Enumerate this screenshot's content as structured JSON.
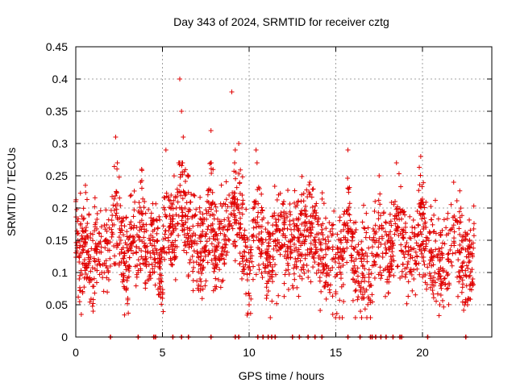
{
  "chart_data": {
    "type": "scatter",
    "title": "Day 343 of 2024, SRMTID for receiver cztg",
    "xlabel": "GPS time / hours",
    "ylabel": "SRMTID / TECUs",
    "xlim": [
      0,
      24
    ],
    "ylim": [
      0,
      0.45
    ],
    "xticks": [
      0,
      5,
      10,
      15,
      20
    ],
    "xtick_labels": [
      "0",
      "5",
      "10",
      "15",
      "20"
    ],
    "yticks": [
      0,
      0.05,
      0.1,
      0.15,
      0.2,
      0.25,
      0.3,
      0.35,
      0.4,
      0.45
    ],
    "ytick_labels": [
      "0",
      "0.05",
      "0.1",
      "0.15",
      "0.2",
      "0.25",
      "0.3",
      "0.35",
      "0.4",
      "0.45"
    ],
    "grid": true,
    "marker": "+",
    "color": "#e00000",
    "series": [
      {
        "name": "SRMTID",
        "x_range": [
          0,
          23
        ],
        "typical_range": [
          0.05,
          0.25
        ],
        "sample_points": [
          [
            0.0,
            0.21
          ],
          [
            0.1,
            0.16
          ],
          [
            0.2,
            0.09
          ],
          [
            0.4,
            0.14
          ],
          [
            0.6,
            0.17
          ],
          [
            0.8,
            0.12
          ],
          [
            1.0,
            0.04
          ],
          [
            1.2,
            0.13
          ],
          [
            1.5,
            0.1
          ],
          [
            2.0,
            0.11
          ],
          [
            2.3,
            0.31
          ],
          [
            2.4,
            0.27
          ],
          [
            2.6,
            0.15
          ],
          [
            3.0,
            0.06
          ],
          [
            3.2,
            0.22
          ],
          [
            3.5,
            0.14
          ],
          [
            3.8,
            0.26
          ],
          [
            4.0,
            0.12
          ],
          [
            4.5,
            0.18
          ],
          [
            4.8,
            0.09
          ],
          [
            5.0,
            0.06
          ],
          [
            5.2,
            0.29
          ],
          [
            5.5,
            0.22
          ],
          [
            5.8,
            0.2
          ],
          [
            6.0,
            0.4
          ],
          [
            6.1,
            0.35
          ],
          [
            6.2,
            0.31
          ],
          [
            6.5,
            0.25
          ],
          [
            7.0,
            0.13
          ],
          [
            7.5,
            0.16
          ],
          [
            7.8,
            0.32
          ],
          [
            8.0,
            0.14
          ],
          [
            8.5,
            0.17
          ],
          [
            9.0,
            0.38
          ],
          [
            9.2,
            0.29
          ],
          [
            9.4,
            0.3
          ],
          [
            9.6,
            0.22
          ],
          [
            10.0,
            0.05
          ],
          [
            10.2,
            0.18
          ],
          [
            10.4,
            0.29
          ],
          [
            10.6,
            0.23
          ],
          [
            11.0,
            0.06
          ],
          [
            11.2,
            0.09
          ],
          [
            11.5,
            0.15
          ],
          [
            12.0,
            0.21
          ],
          [
            12.4,
            0.13
          ],
          [
            13.0,
            0.19
          ],
          [
            13.5,
            0.24
          ],
          [
            14.0,
            0.16
          ],
          [
            14.5,
            0.1
          ],
          [
            15.0,
            0.07
          ],
          [
            15.4,
            0.12
          ],
          [
            15.7,
            0.29
          ],
          [
            16.0,
            0.09
          ],
          [
            16.5,
            0.06
          ],
          [
            17.0,
            0.03
          ],
          [
            17.2,
            0.15
          ],
          [
            17.5,
            0.25
          ],
          [
            18.0,
            0.11
          ],
          [
            18.5,
            0.27
          ],
          [
            19.0,
            0.14
          ],
          [
            19.5,
            0.09
          ],
          [
            19.9,
            0.28
          ],
          [
            20.2,
            0.17
          ],
          [
            20.5,
            0.13
          ],
          [
            21.0,
            0.05
          ],
          [
            21.5,
            0.12
          ],
          [
            21.8,
            0.24
          ],
          [
            22.0,
            0.18
          ],
          [
            22.3,
            0.11
          ],
          [
            22.6,
            0.05
          ],
          [
            22.9,
            0.09
          ]
        ],
        "zero_points_x": [
          2.0,
          3.6,
          4.5,
          4.6,
          5.6,
          6.1,
          6.5,
          7.8,
          9.2,
          9.4,
          10.5,
          10.8,
          11.1,
          11.3,
          11.5,
          12.5,
          12.9,
          13.4,
          13.8,
          14.2,
          15.7,
          16.4,
          17.0,
          17.1,
          17.3,
          17.6,
          17.9,
          18.3,
          18.7,
          18.8,
          20.3,
          22.5
        ]
      }
    ]
  }
}
